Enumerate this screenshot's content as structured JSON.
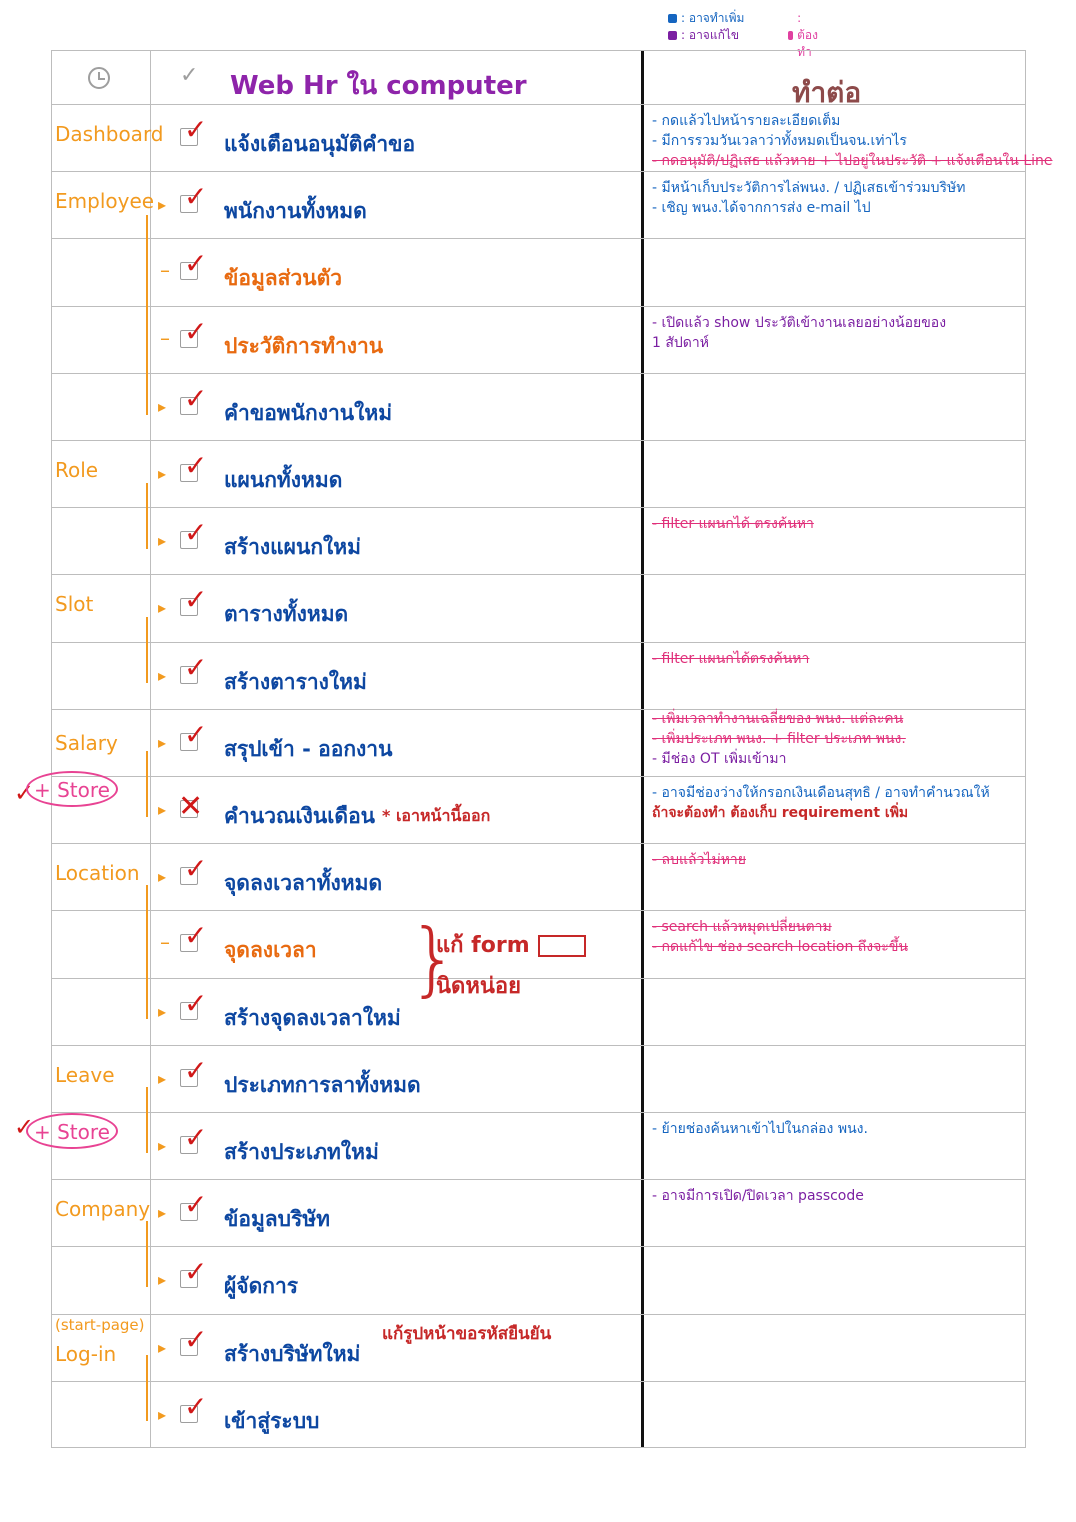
{
  "legend": [
    {
      "color": "#1565c0",
      "label": ": อาจทำเพิ่ม"
    },
    {
      "color": "#7b1fa2",
      "label": ": อาจแก้ไข"
    },
    {
      "color": "#e040a0",
      "label": ": ต้องทำ"
    }
  ],
  "header": {
    "title": "Web Hr ใน computer",
    "todo_title": "ทำต่อ"
  },
  "rows": [
    {
      "category": "Dashboard",
      "task": "แจ้งเตือนอนุมัติคำขอ",
      "status": "done",
      "notes": [
        "- กดแล้วไปหน้ารายละเอียดเต็ม",
        "- มีการรวมวันเวลาว่าทั้งหมดเป็นจน.เท่าไร",
        "- กดอนุมัติ/ปฏิเสธ แล้วหาย + ไปอยู่ในประวัติ + แจ้งเตือนใน Line"
      ]
    },
    {
      "category": "Employee",
      "task": "พนักงานทั้งหมด",
      "status": "done",
      "notes": [
        "- มีหน้าเก็บประวัติการไล่พนง. / ปฏิเสธเข้าร่วมบริษัท",
        "- เชิญ พนง.ได้จากการส่ง e-mail ไป"
      ]
    },
    {
      "category": "",
      "task": "ข้อมูลส่วนตัว",
      "status": "done",
      "notes": []
    },
    {
      "category": "",
      "task": "ประวัติการทำงาน",
      "status": "done",
      "notes": [
        "- เปิดแล้ว show ประวัติเข้างานเลยอย่างน้อยของ",
        "1 สัปดาห์"
      ]
    },
    {
      "category": "",
      "task": "คำขอพนักงานใหม่",
      "status": "done",
      "notes": []
    },
    {
      "category": "Role",
      "task": "แผนกทั้งหมด",
      "status": "done",
      "notes": []
    },
    {
      "category": "",
      "task": "สร้างแผนกใหม่",
      "status": "done",
      "notes": [
        "- filter แผนกได้ ตรงค้นหา"
      ]
    },
    {
      "category": "Slot",
      "task": "ตารางทั้งหมด",
      "status": "done",
      "notes": []
    },
    {
      "category": "",
      "task": "สร้างตารางใหม่",
      "status": "done",
      "notes": [
        "- filter แผนกได้ตรงค้นหา"
      ]
    },
    {
      "category": "Salary",
      "task": "สรุปเข้า - ออกงาน",
      "status": "done",
      "notes": [
        "- เพิ่มเวลาทำงานเฉลี่ยของ พนง. แต่ละคน",
        "- เพิ่มประเภท พนง. + filter ประเภท พนง.",
        "- มีช่อง OT เพิ่มเข้ามา"
      ]
    },
    {
      "category": "",
      "task": "คำนวณเงินเดือน",
      "status": "cancelled",
      "side_note": "* เอาหน้านี้ออก",
      "notes": [
        "- อาจมีช่องว่างให้กรอกเงินเดือนสุทธิ / อาจทำคำนวณให้",
        "ถ้าจะต้องทำ ต้องเก็บ requirement เพิ่ม"
      ]
    },
    {
      "category": "Location",
      "task": "จุดลงเวลาทั้งหมด",
      "status": "done",
      "notes": [
        "- ลบแล้วไม่หาย"
      ]
    },
    {
      "category": "",
      "task": "จุดลงเวลา",
      "status": "done",
      "notes": [
        "- search แล้วหมุดเปลี่ยนตาม",
        "- กดแก้ไข ช่อง search location ถึงจะขึ้น"
      ]
    },
    {
      "category": "",
      "task": "สร้างจุดลงเวลาใหม่",
      "status": "done",
      "notes": []
    },
    {
      "category": "Leave",
      "task": "ประเภทการลาทั้งหมด",
      "status": "done",
      "notes": []
    },
    {
      "category": "",
      "task": "สร้างประเภทใหม่",
      "status": "done",
      "notes": [
        "- ย้ายช่องค้นหาเข้าไปในกล่อง พนง."
      ]
    },
    {
      "category": "Company",
      "task": "ข้อมูลบริษัท",
      "status": "done",
      "notes": [
        "- อาจมีการเปิด/ปิดเวลา passcode"
      ]
    },
    {
      "category": "",
      "task": "ผู้จัดการ",
      "status": "done",
      "notes": []
    },
    {
      "category": "Log-in",
      "pre_category": "(start-page)",
      "task": "สร้างบริษัทใหม่",
      "status": "done",
      "side_note": "แก้รูปหน้าขอรหัสยืนยัน",
      "notes": []
    },
    {
      "category": "",
      "task": "เข้าสู่ระบบ",
      "status": "done",
      "notes": []
    }
  ],
  "annotations": {
    "store_label": "+ Store",
    "location_group_note": [
      "แก้ form",
      "นิดหน่อย"
    ]
  }
}
